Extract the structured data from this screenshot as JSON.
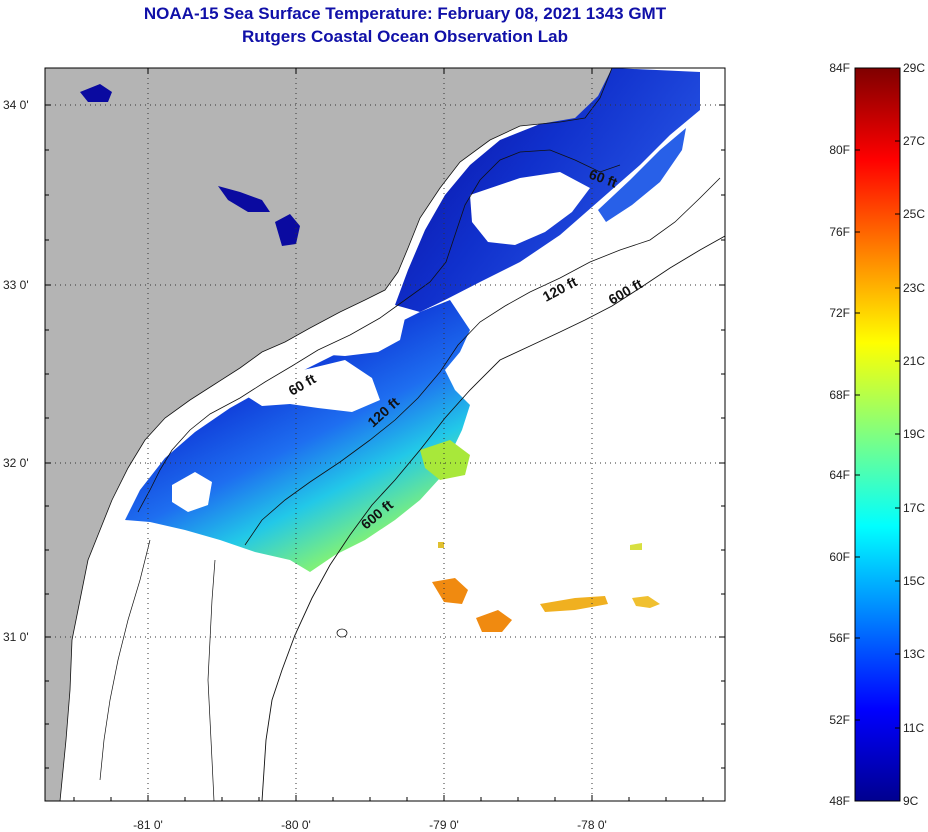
{
  "title": "NOAA-15 Sea Surface Temperature:  February 08, 2021 1343 GMT",
  "subtitle": "Rutgers Coastal Ocean Observation Lab",
  "lat_labels": [
    "34 0'",
    "33 0'",
    "32 0'",
    "31 0'"
  ],
  "lon_labels": [
    "-81 0'",
    "-80 0'",
    "-79 0'",
    "-78 0'"
  ],
  "contour_labels": [
    "60 ft",
    "120 ft",
    "600 ft",
    "60 ft",
    "120 ft",
    "600 ft"
  ],
  "colorbar": {
    "f_labels": [
      "84F",
      "80F",
      "76F",
      "72F",
      "68F",
      "64F",
      "60F",
      "56F",
      "52F",
      "48F"
    ],
    "c_labels": [
      "29C",
      "27C",
      "25C",
      "23C",
      "21C",
      "19C",
      "17C",
      "15C",
      "13C",
      "11C",
      "9C"
    ],
    "colors": [
      "#7f0000",
      "#ff0000",
      "#ff8000",
      "#ffff00",
      "#80ff80",
      "#00ffff",
      "#0080ff",
      "#0000ff",
      "#00008f"
    ]
  },
  "colors": {
    "land": "#b4b4b4",
    "ocean_bg": "#ffffff",
    "title": "#1010a8"
  }
}
